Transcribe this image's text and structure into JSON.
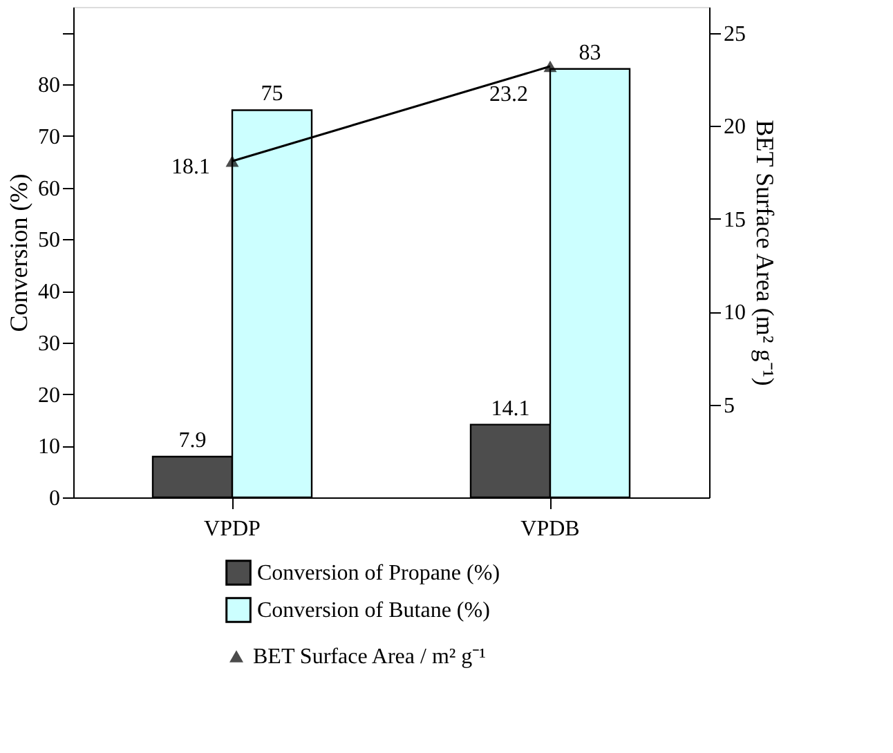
{
  "chart_data": {
    "type": "bar",
    "categories": [
      "VPDP",
      "VPDB"
    ],
    "ylabel": "Conversion (%)",
    "y2label": "BET Surface Area (m² g⁻¹)",
    "ylim": [
      0,
      95
    ],
    "yticks": [
      0,
      10,
      20,
      30,
      40,
      50,
      60,
      70,
      80,
      {
        "value": 90,
        "label": null
      }
    ],
    "y2lim": [
      0,
      26.4
    ],
    "y2ticks": [
      5,
      10,
      15,
      20,
      25
    ],
    "series": [
      {
        "name": "Conversion of Propane (%)",
        "color": "#4d4d4d",
        "values": [
          7.9,
          14.1
        ]
      },
      {
        "name": "Conversion of Butane (%)",
        "color": "#ccffff",
        "values": [
          75,
          83
        ]
      },
      {
        "name": "BET Surface Area / m² g⁻¹",
        "type": "line",
        "axis": "y2",
        "color": "#000000",
        "marker": "triangle",
        "values": [
          18.1,
          23.2
        ]
      }
    ],
    "data_labels": true,
    "legend": "bottom",
    "grid": false
  }
}
